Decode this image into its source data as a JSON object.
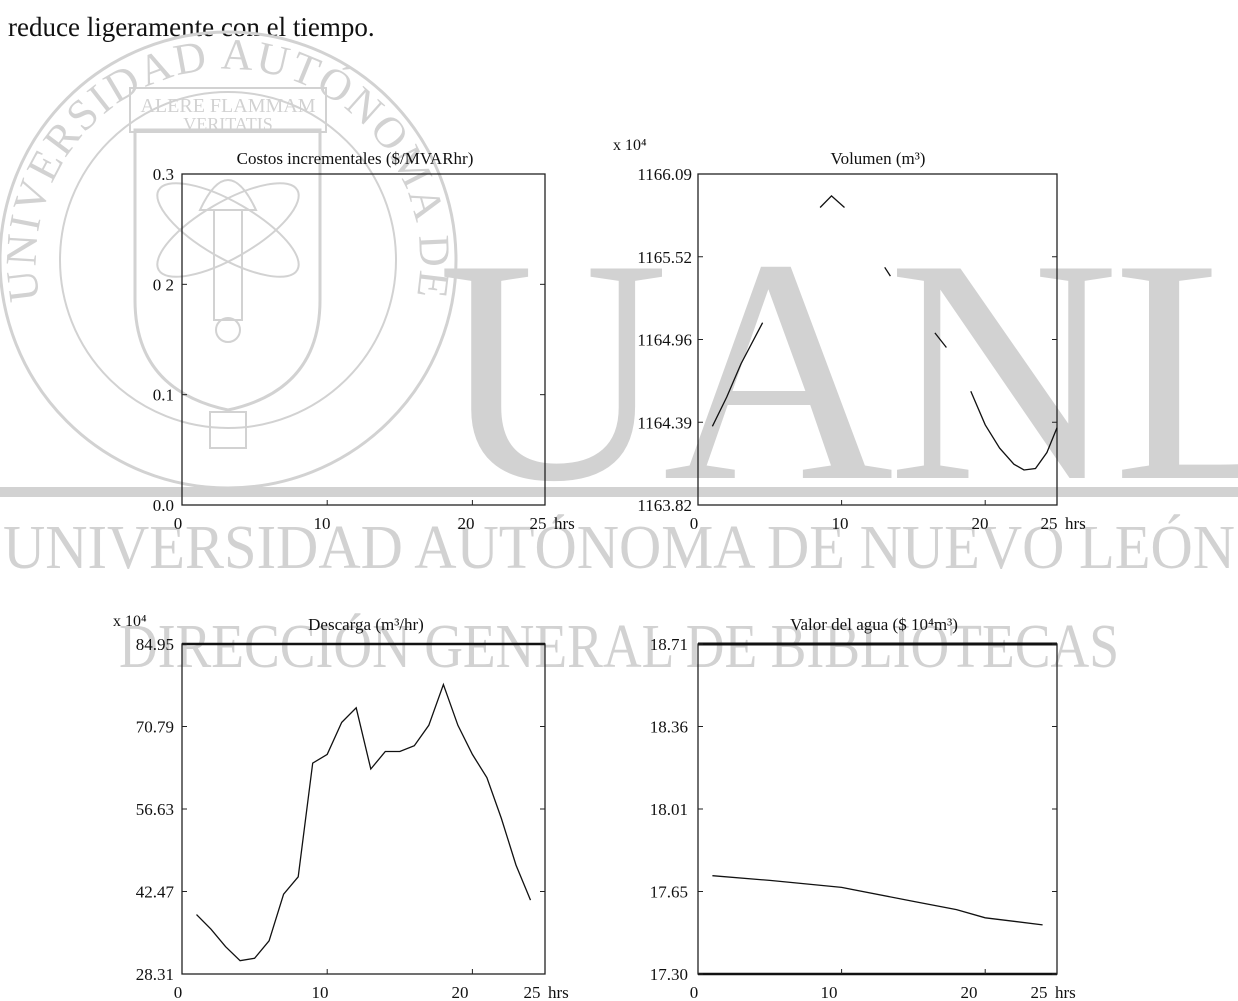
{
  "intro_text": "reduce ligeramente con el tiempo.",
  "watermark": {
    "motto_top": "ALERE FLAMMAM",
    "motto_bottom": "VERITATIS",
    "arc_text": "UNIVERSIDAD AUTÓNOMA DE NUEVO LEÓN",
    "big_letters": "UANL",
    "line1": "UNIVERSIDAD AUTÓNOMA DE NUEVO LEÓN",
    "line2": "DIRECCIÓN GENERAL DE BIBLIOTECAS",
    "color": "#d2d2d2"
  },
  "chart_data": [
    {
      "id": "costos",
      "type": "line",
      "title": "Costos incrementales  ($/MVARhr)",
      "xlabel": "",
      "ylabel": "",
      "xunit_label": "hrs",
      "xlim": [
        0,
        25
      ],
      "ylim": [
        0.0,
        0.3
      ],
      "xticks": [
        "0",
        "10",
        "20",
        "25"
      ],
      "yticks": [
        "0.3",
        "0 2",
        "0.1",
        "0.0"
      ],
      "sci_label": "",
      "series": [
        {
          "x": [],
          "y": []
        }
      ]
    },
    {
      "id": "volumen",
      "type": "line",
      "title": "Volumen (m³)",
      "xlabel": "",
      "ylabel": "",
      "xunit_label": "hrs",
      "xlim": [
        0,
        25
      ],
      "ylim": [
        1163.82,
        1166.09
      ],
      "xticks": [
        "0",
        "10",
        "20",
        "25"
      ],
      "yticks": [
        "1166.09",
        "1165.52",
        "1164.96",
        "1164.39",
        "1163.82"
      ],
      "sci_label": "x 10⁴",
      "series": [
        {
          "x": [
            1,
            2,
            3,
            4.5
          ],
          "y": [
            1164.36,
            1164.56,
            1164.79,
            1165.07
          ]
        },
        {
          "x": [
            8.5,
            9.3,
            10.2
          ],
          "y": [
            1165.86,
            1165.94,
            1165.86
          ]
        },
        {
          "x": [
            13,
            13.4
          ],
          "y": [
            1165.45,
            1165.39
          ]
        },
        {
          "x": [
            16.5,
            17.3
          ],
          "y": [
            1165.0,
            1164.9
          ]
        },
        {
          "x": [
            19,
            20,
            21,
            22,
            22.7,
            23.5,
            24.3,
            25
          ],
          "y": [
            1164.6,
            1164.37,
            1164.21,
            1164.1,
            1164.06,
            1164.07,
            1164.18,
            1164.35
          ]
        }
      ]
    },
    {
      "id": "descarga",
      "type": "line",
      "title": "Descarga  (m³/hr)",
      "xlabel": "",
      "ylabel": "",
      "xunit_label": "hrs",
      "xlim": [
        0,
        25
      ],
      "ylim": [
        28.31,
        84.95
      ],
      "xticks": [
        "0",
        "10",
        "20",
        "25"
      ],
      "yticks": [
        "84.95",
        "70.79",
        "56.63",
        "42.47",
        "28.31"
      ],
      "sci_label": "x 10⁴",
      "series": [
        {
          "x": [
            1,
            2,
            3,
            4,
            5,
            6,
            7,
            8,
            9,
            10,
            11,
            12,
            13,
            14,
            15,
            16,
            17,
            18,
            19,
            20,
            21,
            22,
            23,
            24
          ],
          "y": [
            38.5,
            36,
            33,
            30.6,
            31,
            34,
            42,
            45,
            64.5,
            66,
            71.5,
            74,
            63.5,
            66.5,
            66.5,
            67.5,
            71,
            78,
            71,
            66,
            62,
            55,
            47,
            41
          ]
        }
      ]
    },
    {
      "id": "valor",
      "type": "line",
      "title": "Valor del agua ($ 10⁴m³)",
      "xlabel": "",
      "ylabel": "",
      "xunit_label": "hrs",
      "xlim": [
        0,
        25
      ],
      "ylim": [
        17.3,
        18.71
      ],
      "xticks": [
        "0",
        "10",
        "20",
        "25"
      ],
      "yticks": [
        "18.71",
        "18.36",
        "18.01",
        "17.65",
        "17.30"
      ],
      "sci_label": "",
      "series": [
        {
          "x": [
            1,
            5,
            10,
            15,
            18,
            20,
            22,
            24
          ],
          "y": [
            17.72,
            17.7,
            17.67,
            17.61,
            17.575,
            17.54,
            17.525,
            17.51
          ]
        }
      ]
    }
  ]
}
